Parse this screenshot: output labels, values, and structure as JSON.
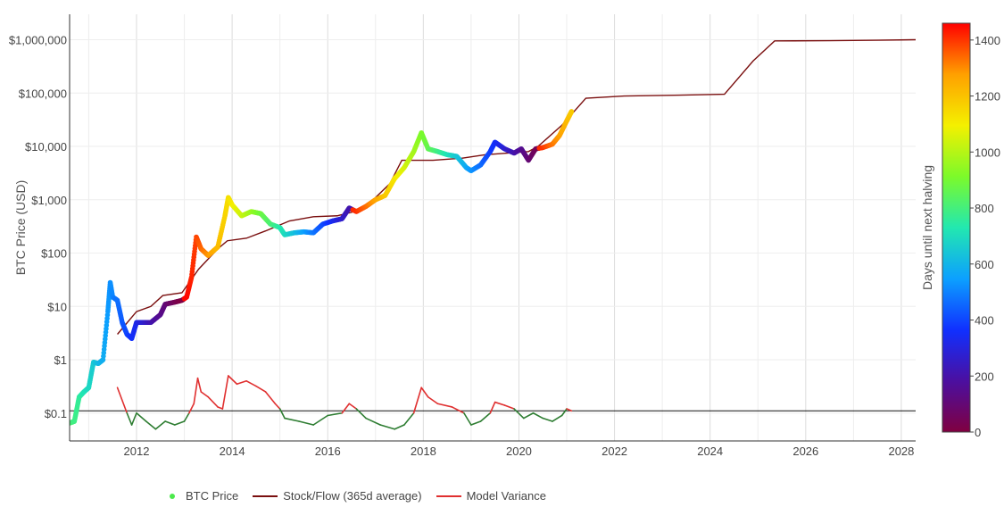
{
  "chart_data": {
    "type": "scatter",
    "title": "",
    "xlabel": "",
    "ylabel": "BTC Price (USD)",
    "y_scale": "log",
    "xlim": [
      2010.6,
      2028.3
    ],
    "ylim": [
      0.03,
      3000000
    ],
    "x_ticks": [
      {
        "value": 2012,
        "label": "2012"
      },
      {
        "value": 2014,
        "label": "2014"
      },
      {
        "value": 2016,
        "label": "2016"
      },
      {
        "value": 2018,
        "label": "2018"
      },
      {
        "value": 2020,
        "label": "2020"
      },
      {
        "value": 2022,
        "label": "2022"
      },
      {
        "value": 2024,
        "label": "2024"
      },
      {
        "value": 2026,
        "label": "2026"
      },
      {
        "value": 2028,
        "label": "2028"
      }
    ],
    "y_ticks": [
      {
        "value": 0.1,
        "label": "$0.1"
      },
      {
        "value": 1,
        "label": "$1"
      },
      {
        "value": 10,
        "label": "$10"
      },
      {
        "value": 100,
        "label": "$100"
      },
      {
        "value": 1000,
        "label": "$1,000"
      },
      {
        "value": 10000,
        "label": "$10,000"
      },
      {
        "value": 100000,
        "label": "$100,000"
      },
      {
        "value": 1000000,
        "label": "$1,000,000"
      }
    ],
    "grid": true,
    "reference_line_y": 0.11,
    "legend_position": "bottom",
    "colorbar": {
      "title": "Days until next halving",
      "min": 0,
      "max": 1460,
      "ticks": [
        0,
        200,
        400,
        600,
        800,
        1000,
        1200,
        1400
      ],
      "colorscale": [
        "#800040",
        "#4b0fa0",
        "#1030ff",
        "#0ca0ff",
        "#22e8b0",
        "#7cfa2a",
        "#f4f000",
        "#ffa000",
        "#ff0000"
      ]
    },
    "series": [
      {
        "name": "BTC Price",
        "kind": "markers",
        "color_by": "days_until_next_halving",
        "legend_color": "#4ce94c",
        "points": [
          [
            2010.6,
            0.065,
            820
          ],
          [
            2010.7,
            0.07,
            790
          ],
          [
            2010.8,
            0.2,
            760
          ],
          [
            2010.9,
            0.25,
            720
          ],
          [
            2011.0,
            0.3,
            690
          ],
          [
            2011.1,
            0.9,
            650
          ],
          [
            2011.2,
            0.85,
            615
          ],
          [
            2011.3,
            1.0,
            580
          ],
          [
            2011.4,
            8.0,
            540
          ],
          [
            2011.45,
            28.0,
            525
          ],
          [
            2011.5,
            15.0,
            505
          ],
          [
            2011.6,
            13.0,
            470
          ],
          [
            2011.7,
            5.0,
            435
          ],
          [
            2011.8,
            3.0,
            400
          ],
          [
            2011.9,
            2.5,
            360
          ],
          [
            2012.0,
            5.0,
            325
          ],
          [
            2012.1,
            5.0,
            290
          ],
          [
            2012.3,
            5.0,
            215
          ],
          [
            2012.5,
            7.0,
            145
          ],
          [
            2012.6,
            11.0,
            110
          ],
          [
            2012.8,
            12.0,
            40
          ],
          [
            2012.95,
            13.0,
            5
          ],
          [
            2013.05,
            15.0,
            1455
          ],
          [
            2013.15,
            35.0,
            1420
          ],
          [
            2013.25,
            200.0,
            1385
          ],
          [
            2013.35,
            120.0,
            1345
          ],
          [
            2013.5,
            90.0,
            1290
          ],
          [
            2013.7,
            130.0,
            1215
          ],
          [
            2013.85,
            500.0,
            1160
          ],
          [
            2013.92,
            1100.0,
            1135
          ],
          [
            2014.0,
            800.0,
            1105
          ],
          [
            2014.2,
            500.0,
            1030
          ],
          [
            2014.4,
            600.0,
            960
          ],
          [
            2014.6,
            550.0,
            885
          ],
          [
            2014.8,
            350.0,
            815
          ],
          [
            2015.0,
            300.0,
            740
          ],
          [
            2015.1,
            220.0,
            700
          ],
          [
            2015.3,
            240.0,
            630
          ],
          [
            2015.5,
            250.0,
            555
          ],
          [
            2015.7,
            240.0,
            485
          ],
          [
            2015.9,
            350.0,
            410
          ],
          [
            2016.1,
            400.0,
            340
          ],
          [
            2016.3,
            440.0,
            265
          ],
          [
            2016.45,
            700.0,
            210
          ],
          [
            2016.6,
            600.0,
            1410
          ],
          [
            2016.8,
            750.0,
            1340
          ],
          [
            2017.0,
            1000.0,
            1270
          ],
          [
            2017.2,
            1200.0,
            1190
          ],
          [
            2017.4,
            2500.0,
            1120
          ],
          [
            2017.6,
            4000.0,
            1050
          ],
          [
            2017.8,
            8000.0,
            975
          ],
          [
            2017.96,
            18000.0,
            915
          ],
          [
            2018.1,
            9000.0,
            865
          ],
          [
            2018.3,
            8000.0,
            790
          ],
          [
            2018.5,
            7000.0,
            720
          ],
          [
            2018.7,
            6500.0,
            645
          ],
          [
            2018.9,
            4000.0,
            575
          ],
          [
            2019.0,
            3500.0,
            535
          ],
          [
            2019.2,
            4500.0,
            465
          ],
          [
            2019.4,
            8000.0,
            390
          ],
          [
            2019.5,
            12000.0,
            355
          ],
          [
            2019.7,
            9000.0,
            280
          ],
          [
            2019.9,
            7500.0,
            210
          ],
          [
            2020.05,
            9000.0,
            155
          ],
          [
            2020.2,
            5500.0,
            100
          ],
          [
            2020.35,
            9000.0,
            45
          ],
          [
            2020.5,
            9500.0,
            1405
          ],
          [
            2020.7,
            11000.0,
            1330
          ],
          [
            2020.85,
            16000.0,
            1275
          ],
          [
            2021.0,
            30000.0,
            1220
          ],
          [
            2021.1,
            45000.0,
            1180
          ]
        ]
      },
      {
        "name": "Stock/Flow (365d average)",
        "kind": "line",
        "color": "#7a0f0f",
        "points": [
          [
            2011.6,
            3.0
          ],
          [
            2012.0,
            8.0
          ],
          [
            2012.3,
            10.0
          ],
          [
            2012.55,
            16.0
          ],
          [
            2012.95,
            18.0
          ],
          [
            2013.3,
            50.0
          ],
          [
            2013.7,
            120.0
          ],
          [
            2013.9,
            170.0
          ],
          [
            2014.3,
            190.0
          ],
          [
            2014.7,
            260.0
          ],
          [
            2015.2,
            400.0
          ],
          [
            2015.7,
            480.0
          ],
          [
            2016.2,
            500.0
          ],
          [
            2016.5,
            580.0
          ],
          [
            2016.9,
            900.0
          ],
          [
            2017.3,
            2000.0
          ],
          [
            2017.55,
            5500.0
          ],
          [
            2018.2,
            5500.0
          ],
          [
            2018.8,
            6000.0
          ],
          [
            2019.3,
            7000.0
          ],
          [
            2020.2,
            8000.0
          ],
          [
            2020.4,
            10000.0
          ],
          [
            2020.9,
            25000.0
          ],
          [
            2021.4,
            80000.0
          ],
          [
            2022.2,
            88000.0
          ],
          [
            2023.5,
            92000.0
          ],
          [
            2024.3,
            95000.0
          ],
          [
            2024.9,
            400000.0
          ],
          [
            2025.35,
            950000.0
          ],
          [
            2026.5,
            960000.0
          ],
          [
            2027.5,
            980000.0
          ],
          [
            2028.3,
            1000000.0
          ]
        ]
      },
      {
        "name": "Model Variance",
        "kind": "line",
        "colors": {
          "above": "#e03030",
          "below": "#2e7d32"
        },
        "threshold": 0.11,
        "points": [
          [
            2011.6,
            0.3
          ],
          [
            2011.8,
            0.1
          ],
          [
            2011.9,
            0.06
          ],
          [
            2012.0,
            0.1
          ],
          [
            2012.2,
            0.07
          ],
          [
            2012.4,
            0.05
          ],
          [
            2012.6,
            0.07
          ],
          [
            2012.8,
            0.06
          ],
          [
            2013.0,
            0.07
          ],
          [
            2013.1,
            0.1
          ],
          [
            2013.2,
            0.15
          ],
          [
            2013.28,
            0.45
          ],
          [
            2013.35,
            0.25
          ],
          [
            2013.5,
            0.2
          ],
          [
            2013.7,
            0.13
          ],
          [
            2013.8,
            0.12
          ],
          [
            2013.92,
            0.5
          ],
          [
            2014.1,
            0.35
          ],
          [
            2014.3,
            0.4
          ],
          [
            2014.5,
            0.32
          ],
          [
            2014.7,
            0.25
          ],
          [
            2014.9,
            0.15
          ],
          [
            2015.0,
            0.12
          ],
          [
            2015.1,
            0.08
          ],
          [
            2015.4,
            0.07
          ],
          [
            2015.7,
            0.06
          ],
          [
            2016.0,
            0.09
          ],
          [
            2016.3,
            0.1
          ],
          [
            2016.45,
            0.15
          ],
          [
            2016.6,
            0.12
          ],
          [
            2016.8,
            0.08
          ],
          [
            2017.1,
            0.06
          ],
          [
            2017.4,
            0.05
          ],
          [
            2017.6,
            0.06
          ],
          [
            2017.8,
            0.1
          ],
          [
            2017.96,
            0.3
          ],
          [
            2018.1,
            0.2
          ],
          [
            2018.3,
            0.15
          ],
          [
            2018.6,
            0.13
          ],
          [
            2018.85,
            0.1
          ],
          [
            2019.0,
            0.06
          ],
          [
            2019.2,
            0.07
          ],
          [
            2019.4,
            0.1
          ],
          [
            2019.5,
            0.16
          ],
          [
            2019.7,
            0.14
          ],
          [
            2019.9,
            0.12
          ],
          [
            2020.1,
            0.08
          ],
          [
            2020.3,
            0.1
          ],
          [
            2020.5,
            0.08
          ],
          [
            2020.7,
            0.07
          ],
          [
            2020.9,
            0.09
          ],
          [
            2021.0,
            0.12
          ],
          [
            2021.1,
            0.11
          ]
        ]
      }
    ]
  },
  "legend": {
    "items": [
      {
        "label": "BTC Price",
        "color": "#4ce94c",
        "kind": "dot"
      },
      {
        "label": "Stock/Flow (365d average)",
        "color": "#7a0f0f",
        "kind": "line"
      },
      {
        "label": "Model Variance",
        "color": "#e03030",
        "kind": "line"
      }
    ]
  }
}
